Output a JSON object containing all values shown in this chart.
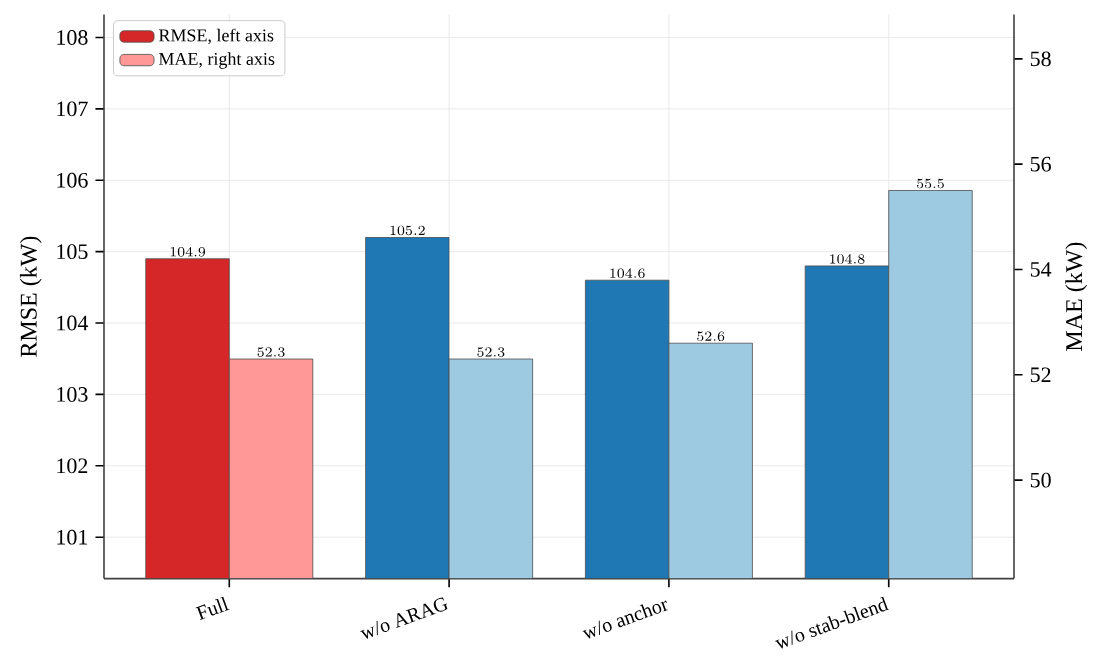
{
  "chart_data": {
    "type": "bar",
    "xlabel": null,
    "ylabel": "RMSE (kW)",
    "y2label": "MAE (kW)",
    "categories": [
      "Full",
      "w/o ARAG",
      "w/o anchor",
      "w/o stab-blend"
    ],
    "series": [
      {
        "name": "RMSE, left axis",
        "color": "#d62728",
        "colors": [
          "#d62728",
          "#1f77b4",
          "#1f77b4",
          "#1f77b4"
        ],
        "values": [
          104.9,
          105.2,
          104.6,
          104.8
        ]
      },
      {
        "name": "MAE, right axis",
        "color": "#ff9896",
        "colors": [
          "#ff9896",
          "#9ecae1",
          "#9ecae1",
          "#9ecae1"
        ],
        "values": [
          52.3,
          52.3,
          52.6,
          55.5
        ],
        "axis": "y2"
      }
    ],
    "ylim": [
      100.42,
      108.32
    ],
    "yticks": [
      101,
      102,
      103,
      104,
      105,
      106,
      107,
      108
    ],
    "y2lim": [
      48.13,
      58.84
    ],
    "y2ticks": [
      50,
      52,
      54,
      56,
      58
    ],
    "grid": true,
    "legend": "top left",
    "data_labels": true
  }
}
